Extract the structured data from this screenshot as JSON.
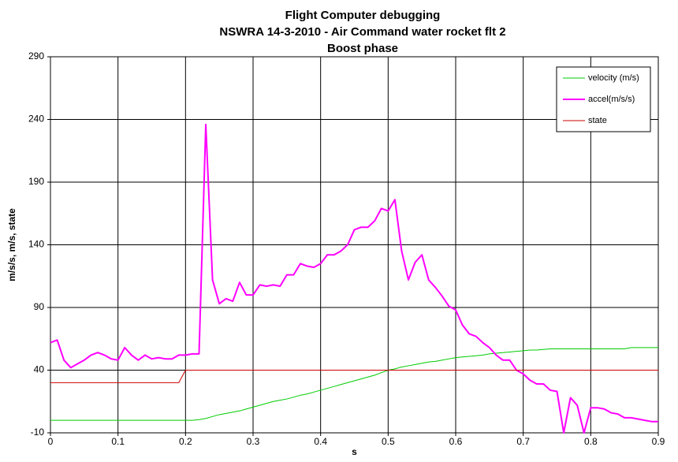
{
  "chart_data": {
    "type": "line",
    "title": [
      "Flight Computer debugging",
      "NSWRA 14-3-2010 - Air Command water rocket  flt 2",
      "Boost phase"
    ],
    "xlabel": "s",
    "ylabel": "m/s/s, m/s, state",
    "x": [
      0,
      0.01,
      0.02,
      0.03,
      0.04,
      0.05,
      0.06,
      0.07,
      0.08,
      0.09,
      0.1,
      0.11,
      0.12,
      0.13,
      0.14,
      0.15,
      0.16,
      0.17,
      0.18,
      0.19,
      0.2,
      0.21,
      0.22,
      0.23,
      0.24,
      0.25,
      0.26,
      0.27,
      0.28,
      0.29,
      0.3,
      0.31,
      0.32,
      0.33,
      0.34,
      0.35,
      0.36,
      0.37,
      0.38,
      0.39,
      0.4,
      0.41,
      0.42,
      0.43,
      0.44,
      0.45,
      0.46,
      0.47,
      0.48,
      0.49,
      0.5,
      0.51,
      0.52,
      0.53,
      0.54,
      0.55,
      0.56,
      0.57,
      0.58,
      0.59,
      0.6,
      0.61,
      0.62,
      0.63,
      0.64,
      0.65,
      0.66,
      0.67,
      0.68,
      0.69,
      0.7,
      0.71,
      0.72,
      0.73,
      0.74,
      0.75,
      0.76,
      0.77,
      0.78,
      0.79,
      0.8,
      0.81,
      0.82,
      0.83,
      0.84,
      0.85,
      0.86,
      0.87,
      0.88,
      0.89,
      0.9
    ],
    "series": [
      {
        "name": "velocity (m/s)",
        "color": "#00cc00",
        "width": 1,
        "values": [
          0,
          0,
          0,
          0,
          0,
          0,
          0,
          0,
          0,
          0,
          0,
          0,
          0,
          0,
          0,
          0,
          0,
          0,
          0,
          0,
          0,
          0,
          0.5,
          1.5,
          3,
          4.5,
          5.5,
          6.5,
          7.5,
          9,
          10.5,
          12,
          13.5,
          15,
          16,
          17,
          18.5,
          20,
          21,
          22.5,
          24,
          25.5,
          27,
          28.5,
          30,
          31.5,
          33,
          34.5,
          36,
          38,
          40,
          41,
          42.5,
          43.5,
          44.5,
          45.5,
          46.5,
          47,
          48,
          49,
          50,
          50.5,
          51,
          51.5,
          52,
          53,
          53.5,
          54,
          54.5,
          55,
          55.5,
          56,
          56,
          56.5,
          57,
          57,
          57,
          57,
          57,
          57,
          57,
          57,
          57,
          57,
          57,
          57,
          58,
          58,
          58,
          58,
          58
        ]
      },
      {
        "name": "accel(m/s/s)",
        "color": "#ff00ff",
        "width": 2,
        "values": [
          62,
          64,
          48,
          42,
          45,
          48,
          52,
          54,
          52,
          49,
          48,
          58,
          52,
          48,
          52,
          49,
          50,
          49,
          49,
          52,
          52,
          53,
          53,
          236,
          112,
          93,
          97,
          95,
          110,
          100,
          100,
          108,
          107,
          108,
          107,
          116,
          116,
          125,
          123,
          122,
          125,
          132,
          132,
          135,
          140,
          152,
          154,
          154,
          159,
          169,
          167,
          176,
          135,
          112,
          126,
          132,
          112,
          106,
          99,
          91,
          88,
          76,
          69,
          67,
          62,
          58,
          52,
          48,
          48,
          40,
          37,
          32,
          29,
          29,
          24,
          23,
          -10,
          18,
          12,
          -10,
          10,
          10,
          9,
          6,
          5,
          2,
          2,
          1,
          0,
          -1,
          -1
        ]
      },
      {
        "name": "state",
        "color": "#cc0000",
        "width": 1,
        "values": [
          30,
          30,
          30,
          30,
          30,
          30,
          30,
          30,
          30,
          30,
          30,
          30,
          30,
          30,
          30,
          30,
          30,
          30,
          30,
          30,
          40,
          40,
          40,
          40,
          40,
          40,
          40,
          40,
          40,
          40,
          40,
          40,
          40,
          40,
          40,
          40,
          40,
          40,
          40,
          40,
          40,
          40,
          40,
          40,
          40,
          40,
          40,
          40,
          40,
          40,
          40,
          40,
          40,
          40,
          40,
          40,
          40,
          40,
          40,
          40,
          40,
          40,
          40,
          40,
          40,
          40,
          40,
          40,
          40,
          40,
          40,
          40,
          40,
          40,
          40,
          40,
          40,
          40,
          40,
          40,
          40,
          40,
          40,
          40,
          40,
          40,
          40,
          40,
          40,
          40,
          40
        ]
      }
    ],
    "xlim": [
      0,
      0.9
    ],
    "xticks": [
      0,
      0.1,
      0.2,
      0.3,
      0.4,
      0.5,
      0.6,
      0.7,
      0.8,
      0.9
    ],
    "ylim": [
      -10,
      290
    ],
    "yticks": [
      -10,
      40,
      90,
      140,
      190,
      240,
      290
    ],
    "grid": true,
    "legend": "top-right"
  }
}
